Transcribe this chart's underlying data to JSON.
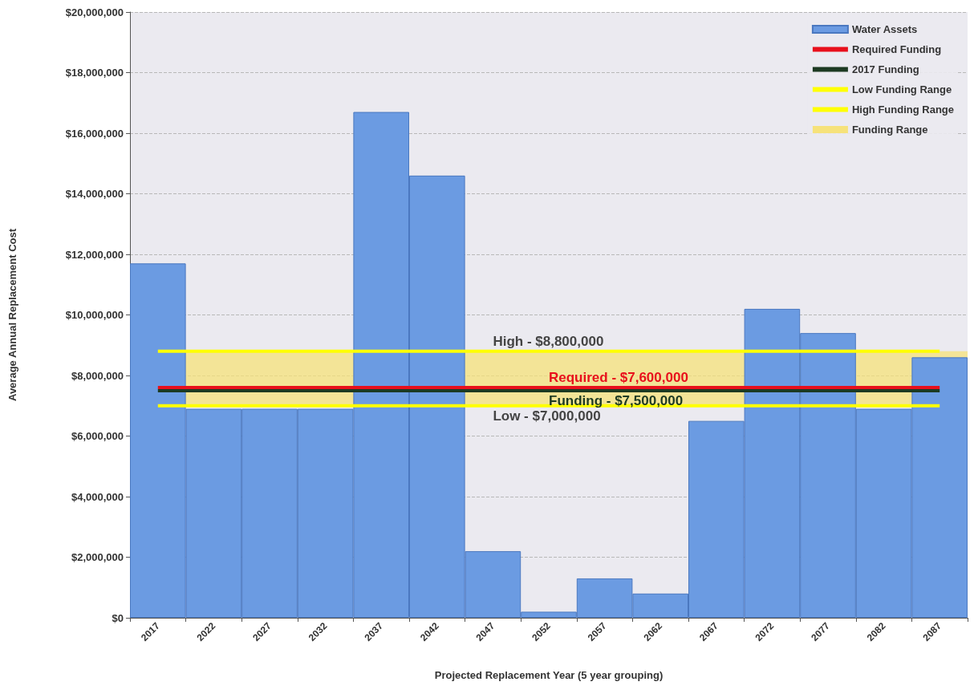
{
  "chart_data": {
    "type": "bar",
    "xlabel": "Projected Replacement Year (5 year grouping)",
    "ylabel": "Average Annual Replacement Cost",
    "categories": [
      "2017",
      "2022",
      "2027",
      "2032",
      "2037",
      "2042",
      "2047",
      "2052",
      "2057",
      "2062",
      "2067",
      "2072",
      "2077",
      "2082",
      "2087"
    ],
    "series": [
      {
        "name": "Water Assets",
        "color": "#6b9be2",
        "values": [
          11700000,
          6900000,
          6900000,
          6900000,
          16700000,
          14600000,
          2200000,
          200000,
          1300000,
          800000,
          6500000,
          10200000,
          9400000,
          6900000,
          8600000
        ]
      },
      {
        "type": "line",
        "name": "Required Funding",
        "color": "#e8101c",
        "values": [
          7600000,
          7600000,
          7600000,
          7600000,
          7600000,
          7600000,
          7600000,
          7600000,
          7600000,
          7600000,
          7600000,
          7600000,
          7600000,
          7600000,
          7600000
        ]
      },
      {
        "type": "line",
        "name": "2017 Funding",
        "color": "#1d3a22",
        "values": [
          7500000,
          7500000,
          7500000,
          7500000,
          7500000,
          7500000,
          7500000,
          7500000,
          7500000,
          7500000,
          7500000,
          7500000,
          7500000,
          7500000,
          7500000
        ]
      },
      {
        "type": "line",
        "name": "Low Funding Range",
        "color": "#ffff00",
        "values": [
          7000000,
          7000000,
          7000000,
          7000000,
          7000000,
          7000000,
          7000000,
          7000000,
          7000000,
          7000000,
          7000000,
          7000000,
          7000000,
          7000000,
          7000000
        ]
      },
      {
        "type": "line",
        "name": "High Funding Range",
        "color": "#ffff00",
        "values": [
          8800000,
          8800000,
          8800000,
          8800000,
          8800000,
          8800000,
          8800000,
          8800000,
          8800000,
          8800000,
          8800000,
          8800000,
          8800000,
          8800000,
          8800000
        ]
      }
    ],
    "bands": [
      {
        "axis": "y",
        "from": 7000000,
        "to": 8800000,
        "label": "Funding Range",
        "color": "#f6e27a"
      }
    ],
    "annotations": [
      {
        "text": "High - $8,800,000",
        "x": "2047",
        "y": 8800000
      },
      {
        "text": "Required - $7,600,000",
        "x": "2052",
        "y": 7600000
      },
      {
        "text": "Funding - $7,500,000",
        "x": "2052",
        "y": 7500000
      },
      {
        "text": "Low - $7,000,000",
        "x": "2047",
        "y": 7000000
      }
    ],
    "ylim": [
      0,
      20000000
    ],
    "yticks": [
      {
        "value": 0,
        "label": "$0"
      },
      {
        "value": 2000000,
        "label": "$2,000,000"
      },
      {
        "value": 4000000,
        "label": "$4,000,000"
      },
      {
        "value": 6000000,
        "label": "$6,000,000"
      },
      {
        "value": 8000000,
        "label": "$8,000,000"
      },
      {
        "value": 10000000,
        "label": "$10,000,000"
      },
      {
        "value": 12000000,
        "label": "$12,000,000"
      },
      {
        "value": 14000000,
        "label": "$14,000,000"
      },
      {
        "value": 16000000,
        "label": "$16,000,000"
      },
      {
        "value": 18000000,
        "label": "$18,000,000"
      },
      {
        "value": 20000000,
        "label": "$20,000,000"
      }
    ],
    "grid": "y",
    "legend": "top right",
    "line_style": "solid"
  }
}
